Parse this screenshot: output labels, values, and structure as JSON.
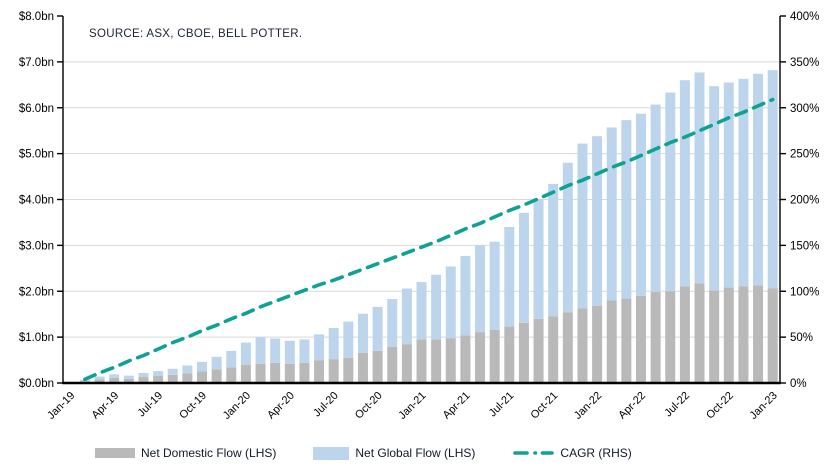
{
  "source_note": "SOURCE: ASX, CBOE, BELL POTTER.",
  "legend": {
    "domestic_label": "Net Domestic Flow (LHS)",
    "global_label": "Net Global Flow (LHS)",
    "cagr_label": "CAGR (RHS)"
  },
  "colors": {
    "domestic": "#b9b9b9",
    "global": "#bcd5ec",
    "cagr": "#0da294",
    "gridline": "#d9d9d9",
    "axis": "#000000",
    "text": "#000000"
  },
  "chart_data": {
    "type": "bar",
    "subtype": "stacked-bars-with-line",
    "title": "",
    "xlabel": "",
    "ylabel": "",
    "grid": true,
    "legend_position": "bottom",
    "categories": [
      "Jan-19",
      "Feb-19",
      "Mar-19",
      "Apr-19",
      "May-19",
      "Jun-19",
      "Jul-19",
      "Aug-19",
      "Sep-19",
      "Oct-19",
      "Nov-19",
      "Dec-19",
      "Jan-20",
      "Feb-20",
      "Mar-20",
      "Apr-20",
      "May-20",
      "Jun-20",
      "Jul-20",
      "Aug-20",
      "Sep-20",
      "Oct-20",
      "Nov-20",
      "Dec-20",
      "Jan-21",
      "Feb-21",
      "Mar-21",
      "Apr-21",
      "May-21",
      "Jun-21",
      "Jul-21",
      "Aug-21",
      "Sep-21",
      "Oct-21",
      "Nov-21",
      "Dec-21",
      "Jan-22",
      "Feb-22",
      "Mar-22",
      "Apr-22",
      "May-22",
      "Jun-22",
      "Jul-22",
      "Aug-22",
      "Sep-22",
      "Oct-22",
      "Nov-22",
      "Dec-22",
      "Jan-23"
    ],
    "series": [
      {
        "name": "Net Domestic Flow (LHS)",
        "type": "bar",
        "stacked": true,
        "axis": "left",
        "unit": "$bn",
        "color_key": "domestic",
        "values": [
          0.01,
          0.04,
          0.08,
          0.11,
          0.09,
          0.13,
          0.16,
          0.18,
          0.21,
          0.25,
          0.3,
          0.34,
          0.4,
          0.42,
          0.44,
          0.42,
          0.44,
          0.49,
          0.52,
          0.55,
          0.66,
          0.7,
          0.79,
          0.84,
          0.95,
          0.95,
          0.97,
          1.04,
          1.11,
          1.16,
          1.23,
          1.31,
          1.4,
          1.45,
          1.54,
          1.63,
          1.68,
          1.8,
          1.84,
          1.9,
          1.99,
          2.0,
          2.11,
          2.17,
          2.02,
          2.08,
          2.11,
          2.13,
          2.06
        ]
      },
      {
        "name": "Net Global Flow (LHS)",
        "type": "bar",
        "stacked": true,
        "axis": "left",
        "unit": "$bn",
        "color_key": "global",
        "values": [
          0.01,
          0.03,
          0.06,
          0.08,
          0.07,
          0.09,
          0.1,
          0.13,
          0.17,
          0.21,
          0.27,
          0.36,
          0.48,
          0.58,
          0.53,
          0.5,
          0.51,
          0.57,
          0.68,
          0.79,
          0.85,
          0.96,
          1.04,
          1.22,
          1.25,
          1.41,
          1.57,
          1.73,
          1.89,
          1.92,
          2.17,
          2.4,
          2.61,
          2.89,
          3.26,
          3.59,
          3.7,
          3.77,
          3.89,
          3.97,
          4.08,
          4.33,
          4.49,
          4.6,
          4.45,
          4.47,
          4.52,
          4.61,
          4.76
        ]
      },
      {
        "name": "CAGR (RHS)",
        "type": "line",
        "dashed": true,
        "axis": "right",
        "unit": "%",
        "color_key": "cagr",
        "values": [
          null,
          4,
          11,
          17,
          24,
          30,
          37,
          44,
          50,
          57,
          63,
          70,
          76,
          83,
          89,
          95,
          101,
          107,
          112,
          118,
          124,
          130,
          136,
          142,
          148,
          154,
          161,
          168,
          174,
          181,
          188,
          194,
          201,
          208,
          215,
          221,
          228,
          235,
          241,
          248,
          255,
          262,
          268,
          275,
          282,
          289,
          295,
          302,
          309
        ]
      }
    ],
    "left_axis": {
      "min": 0,
      "max": 8,
      "step": 1,
      "unit": "$bn",
      "tick_labels": [
        "$8.0bn",
        "$7.0bn",
        "$6.0bn",
        "$5.0bn",
        "$4.0bn",
        "$3.0bn",
        "$2.0bn",
        "$1.0bn",
        "$0.0bn"
      ]
    },
    "right_axis": {
      "min": 0,
      "max": 400,
      "step": 50,
      "unit": "%",
      "tick_labels": [
        "400%",
        "350%",
        "300%",
        "250%",
        "200%",
        "150%",
        "100%",
        "50%",
        "0%"
      ]
    },
    "x_axis": {
      "label_every": 3,
      "visible_labels": [
        "Jan-19",
        "Apr-19",
        "Jul-19",
        "Oct-19",
        "Jan-20",
        "Apr-20",
        "Jul-20",
        "Oct-20",
        "Jan-21",
        "Apr-21",
        "Jul-21",
        "Oct-21",
        "Jan-22",
        "Apr-22",
        "Jul-22",
        "Oct-22",
        "Jan-23"
      ]
    }
  }
}
